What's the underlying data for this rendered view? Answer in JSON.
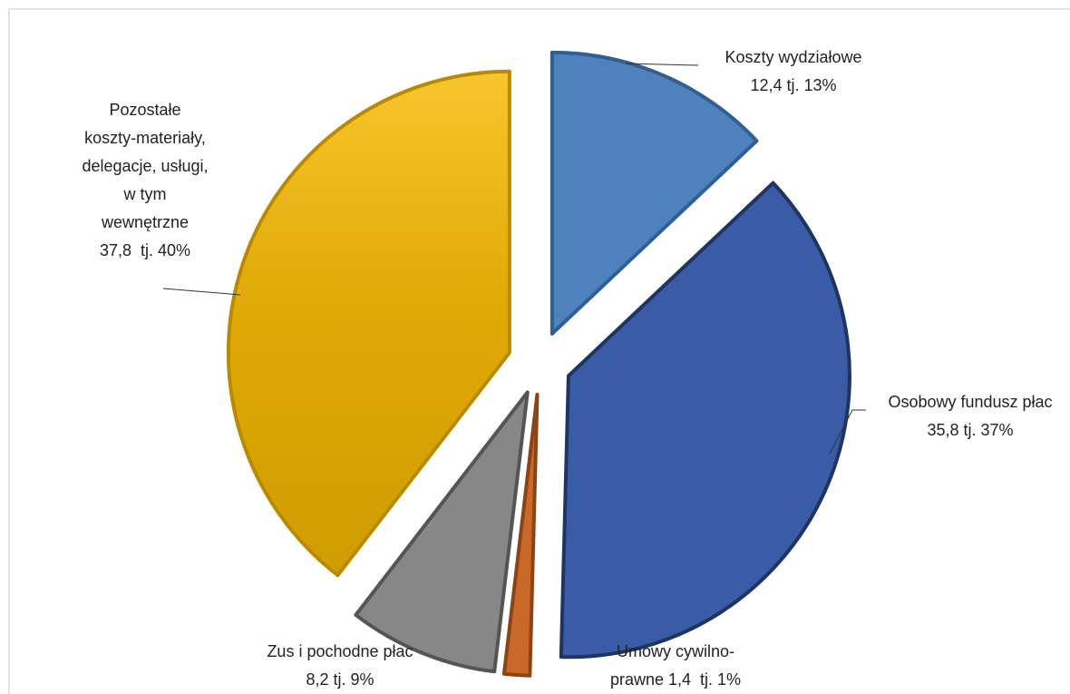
{
  "chart_data": {
    "type": "pie",
    "categories": [
      "Koszty wydziałowe",
      "Osobowy fundusz płac",
      "Umowy cywilno-prawne",
      "Zus i pochodne płac",
      "Pozostałe koszty-materiały, delegacje, usługi, w tym wewnętrzne"
    ],
    "values": [
      12.4,
      35.8,
      1.4,
      8.2,
      37.8
    ],
    "value_labels": [
      "12,4 tj. 13%",
      "35,8 tj. 37%",
      "1,4  tj. 1%",
      "8,2 tj. 9%",
      "37,8  tj. 40%"
    ],
    "colors": [
      "#4f81bd",
      "#3a5ca6",
      "#c8692a",
      "#878787",
      "#e3ad0c"
    ],
    "exploded": true
  }
}
